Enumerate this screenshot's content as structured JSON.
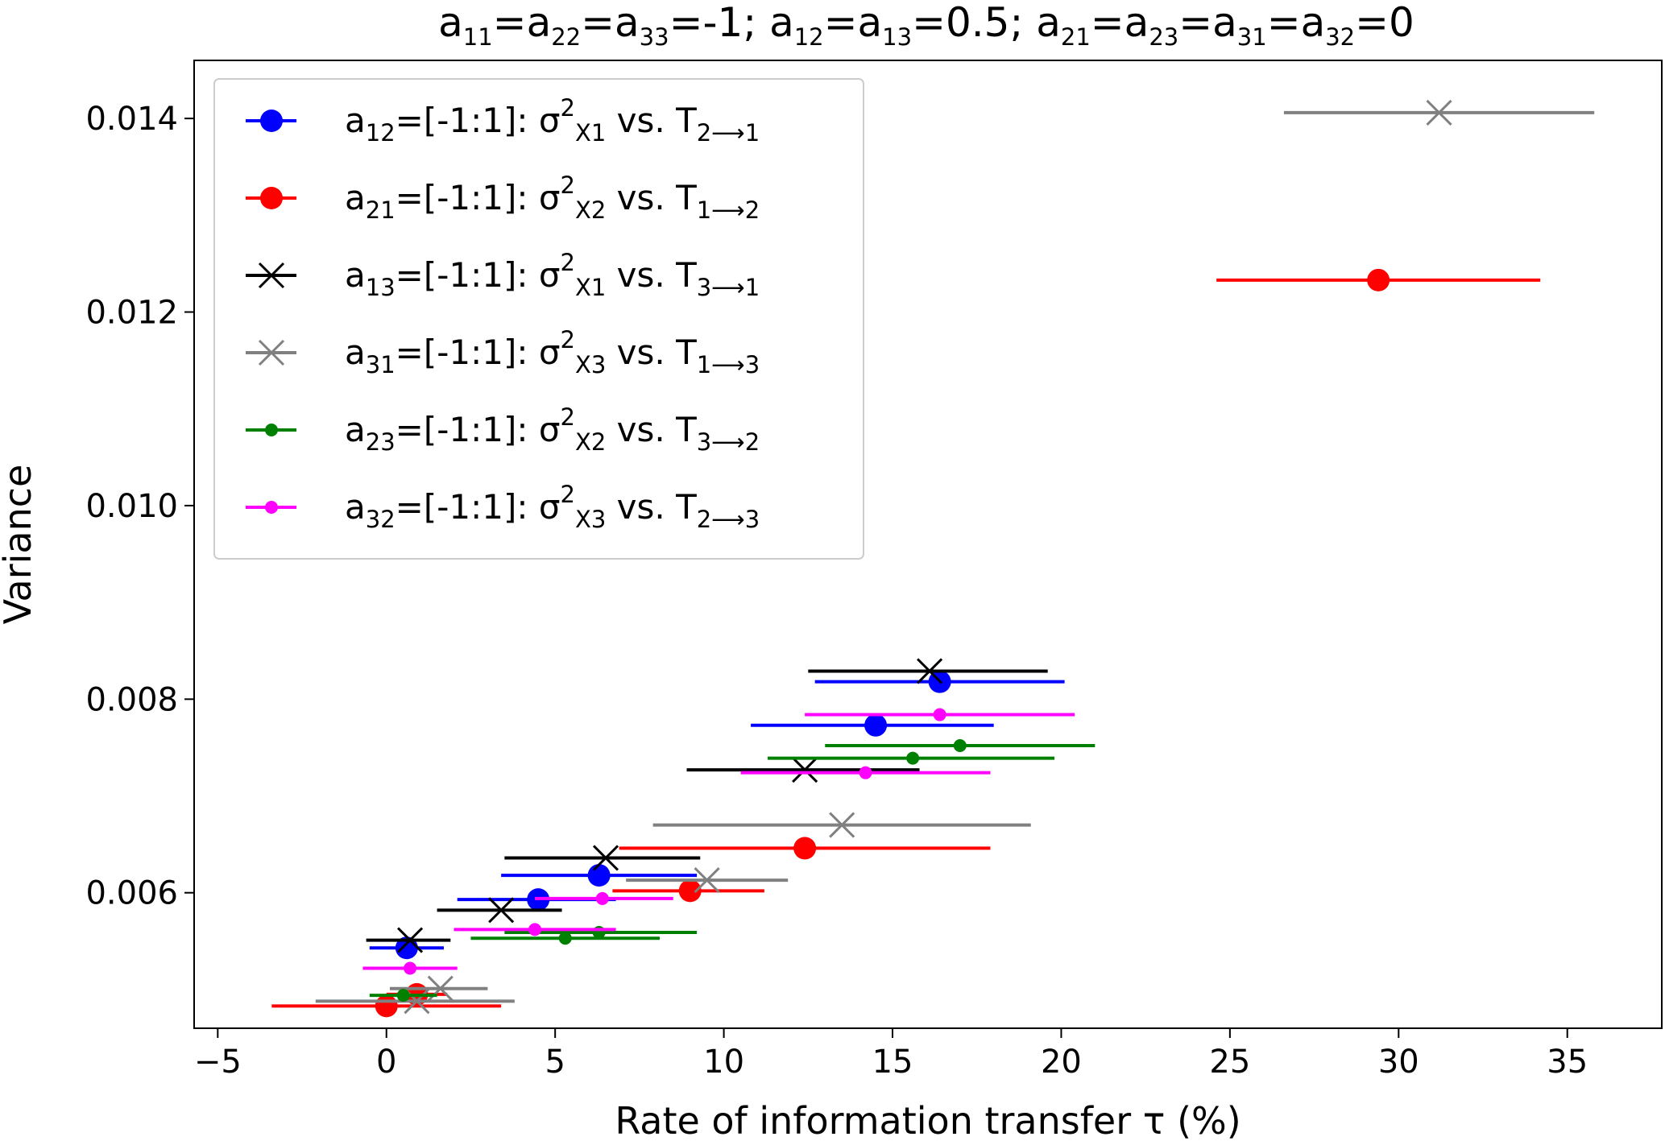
{
  "chart_data": {
    "type": "scatter",
    "title": "a<sub>11</sub>=a<sub>22</sub>=a<sub>33</sub>=-1; a<sub>12</sub>=a<sub>13</sub>=0.5; a<sub>21</sub>=a<sub>23</sub>=a<sub>31</sub>=a<sub>32</sub>=0",
    "xlabel": "Rate of information transfer τ (%)",
    "ylabel": "Variance",
    "xlim": [
      -5.7,
      37.8
    ],
    "ylim": [
      0.0046,
      0.0146
    ],
    "xticks": [
      -5,
      0,
      5,
      10,
      15,
      20,
      25,
      30,
      35
    ],
    "xtick_labels": [
      "−5",
      "0",
      "5",
      "10",
      "15",
      "20",
      "25",
      "30",
      "35"
    ],
    "yticks": [
      0.006,
      0.008,
      0.01,
      0.012,
      0.014
    ],
    "ytick_labels": [
      "0.006",
      "0.008",
      "0.010",
      "0.012",
      "0.014"
    ],
    "grid": false,
    "legend_position": "top-left",
    "series": [
      {
        "name": "a<sub>12</sub>=[-1:1]: σ<sup>2</sup><sub>X1</sub> vs. T<sub>2⟶1</sub>",
        "color": "#0000ff",
        "marker": "circle-large",
        "points": [
          {
            "x": 0.6,
            "y": 0.00543,
            "xmin": -0.5,
            "xmax": 1.7
          },
          {
            "x": 4.5,
            "y": 0.00593,
            "xmin": 2.1,
            "xmax": 6.8
          },
          {
            "x": 6.3,
            "y": 0.00618,
            "xmin": 3.4,
            "xmax": 9.2
          },
          {
            "x": 14.5,
            "y": 0.00773,
            "xmin": 10.8,
            "xmax": 18.0
          },
          {
            "x": 16.4,
            "y": 0.00818,
            "xmin": 12.7,
            "xmax": 20.1
          }
        ]
      },
      {
        "name": "a<sub>21</sub>=[-1:1]: σ<sup>2</sup><sub>X2</sub> vs. T<sub>1⟶2</sub>",
        "color": "#ff0000",
        "marker": "circle-large",
        "points": [
          {
            "x": 0.0,
            "y": 0.00483,
            "xmin": -3.4,
            "xmax": 3.4
          },
          {
            "x": 0.9,
            "y": 0.00495,
            "xmin": 0.0,
            "xmax": 1.8
          },
          {
            "x": 9.0,
            "y": 0.00602,
            "xmin": 6.7,
            "xmax": 11.2
          },
          {
            "x": 12.4,
            "y": 0.00646,
            "xmin": 6.9,
            "xmax": 17.9
          },
          {
            "x": 29.4,
            "y": 0.01233,
            "xmin": 24.6,
            "xmax": 34.2
          }
        ]
      },
      {
        "name": "a<sub>13</sub>=[-1:1]: σ<sup>2</sup><sub>X1</sub> vs. T<sub>3⟶1</sub>",
        "color": "#000000",
        "marker": "x",
        "points": [
          {
            "x": 0.7,
            "y": 0.00551,
            "xmin": -0.6,
            "xmax": 1.9
          },
          {
            "x": 3.4,
            "y": 0.00582,
            "xmin": 1.5,
            "xmax": 5.2
          },
          {
            "x": 6.5,
            "y": 0.00636,
            "xmin": 3.5,
            "xmax": 9.3
          },
          {
            "x": 12.4,
            "y": 0.00727,
            "xmin": 8.9,
            "xmax": 15.8
          },
          {
            "x": 16.1,
            "y": 0.00829,
            "xmin": 12.5,
            "xmax": 19.6
          }
        ]
      },
      {
        "name": "a<sub>31</sub>=[-1:1]: σ<sup>2</sup><sub>X3</sub> vs. T<sub>1⟶3</sub>",
        "color": "#808080",
        "marker": "x",
        "points": [
          {
            "x": 0.9,
            "y": 0.00488,
            "xmin": -2.1,
            "xmax": 3.8
          },
          {
            "x": 1.6,
            "y": 0.00501,
            "xmin": 0.1,
            "xmax": 3.0
          },
          {
            "x": 9.5,
            "y": 0.00613,
            "xmin": 7.1,
            "xmax": 11.9
          },
          {
            "x": 13.5,
            "y": 0.0067,
            "xmin": 7.9,
            "xmax": 19.1
          },
          {
            "x": 31.2,
            "y": 0.01406,
            "xmin": 26.6,
            "xmax": 35.8
          }
        ]
      },
      {
        "name": "a<sub>23</sub>=[-1:1]: σ<sup>2</sup><sub>X2</sub> vs. T<sub>3⟶2</sub>",
        "color": "#008000",
        "marker": "circle-small",
        "points": [
          {
            "x": 0.5,
            "y": 0.00494,
            "xmin": -0.5,
            "xmax": 1.5
          },
          {
            "x": 5.3,
            "y": 0.00553,
            "xmin": 2.5,
            "xmax": 8.1
          },
          {
            "x": 6.3,
            "y": 0.00559,
            "xmin": 3.5,
            "xmax": 9.2
          },
          {
            "x": 15.6,
            "y": 0.00739,
            "xmin": 11.3,
            "xmax": 19.8
          },
          {
            "x": 17.0,
            "y": 0.00752,
            "xmin": 13.0,
            "xmax": 21.0
          }
        ]
      },
      {
        "name": "a<sub>32</sub>=[-1:1]: σ<sup>2</sup><sub>X3</sub> vs. T<sub>2⟶3</sub>",
        "color": "#ff00ff",
        "marker": "circle-small",
        "points": [
          {
            "x": 0.7,
            "y": 0.00522,
            "xmin": -0.7,
            "xmax": 2.1
          },
          {
            "x": 4.4,
            "y": 0.00562,
            "xmin": 2.0,
            "xmax": 6.8
          },
          {
            "x": 6.4,
            "y": 0.00594,
            "xmin": 4.4,
            "xmax": 8.5
          },
          {
            "x": 14.2,
            "y": 0.00724,
            "xmin": 10.5,
            "xmax": 17.9
          },
          {
            "x": 16.4,
            "y": 0.00784,
            "xmin": 12.4,
            "xmax": 20.4
          }
        ]
      }
    ]
  }
}
